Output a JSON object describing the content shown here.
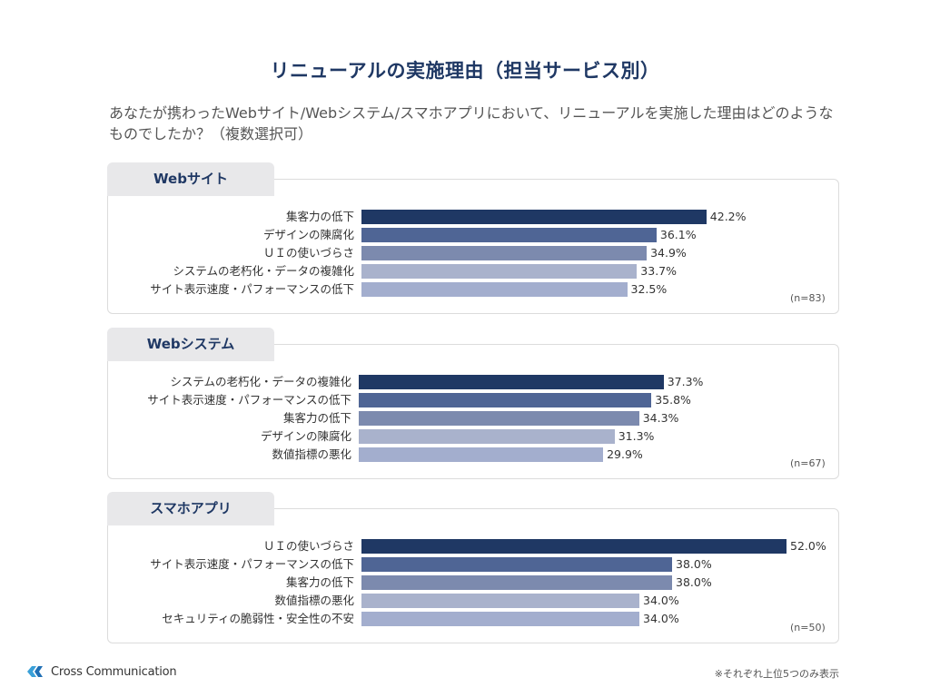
{
  "title": "リニューアルの実施理由（担当サービス別）",
  "question": "あなたが携わったWebサイト/Webシステム/スマホアプリにおいて、リニューアルを実施した理由はどのようなものでしたか？（複数選択可）",
  "brand": "Cross Communication",
  "footnote": "※それぞれ上位5つのみ表示",
  "colors": [
    "#1f3864",
    "#4f6595",
    "#7c8aae",
    "#a9b2cc",
    "#a3aece"
  ],
  "chart_data": [
    {
      "type": "bar",
      "title": "Webサイト",
      "n_label": "(n=83)",
      "categories": [
        "集客力の低下",
        "デザインの陳腐化",
        "ＵＩの使いづらさ",
        "システムの老朽化・データの複雑化",
        "サイト表示速度・パフォーマンスの低下"
      ],
      "values": [
        42.2,
        36.1,
        34.9,
        33.7,
        32.5
      ],
      "value_labels": [
        "42.2%",
        "36.1%",
        "34.9%",
        "33.7%",
        "32.5%"
      ]
    },
    {
      "type": "bar",
      "title": "Webシステム",
      "n_label": "(n=67)",
      "categories": [
        "システムの老朽化・データの複雑化",
        "サイト表示速度・パフォーマンスの低下",
        "集客力の低下",
        "デザインの陳腐化",
        "数値指標の悪化"
      ],
      "values": [
        37.3,
        35.8,
        34.3,
        31.3,
        29.9
      ],
      "value_labels": [
        "37.3%",
        "35.8%",
        "34.3%",
        "31.3%",
        "29.9%"
      ]
    },
    {
      "type": "bar",
      "title": "スマホアプリ",
      "n_label": "(n=50)",
      "categories": [
        "ＵＩの使いづらさ",
        "サイト表示速度・パフォーマンスの低下",
        "集客力の低下",
        "数値指標の悪化",
        "セキュリティの脆弱性・安全性の不安"
      ],
      "values": [
        52.0,
        38.0,
        38.0,
        34.0,
        34.0
      ],
      "value_labels": [
        "52.0%",
        "38.0%",
        "38.0%",
        "34.0%",
        "34.0%"
      ]
    }
  ]
}
